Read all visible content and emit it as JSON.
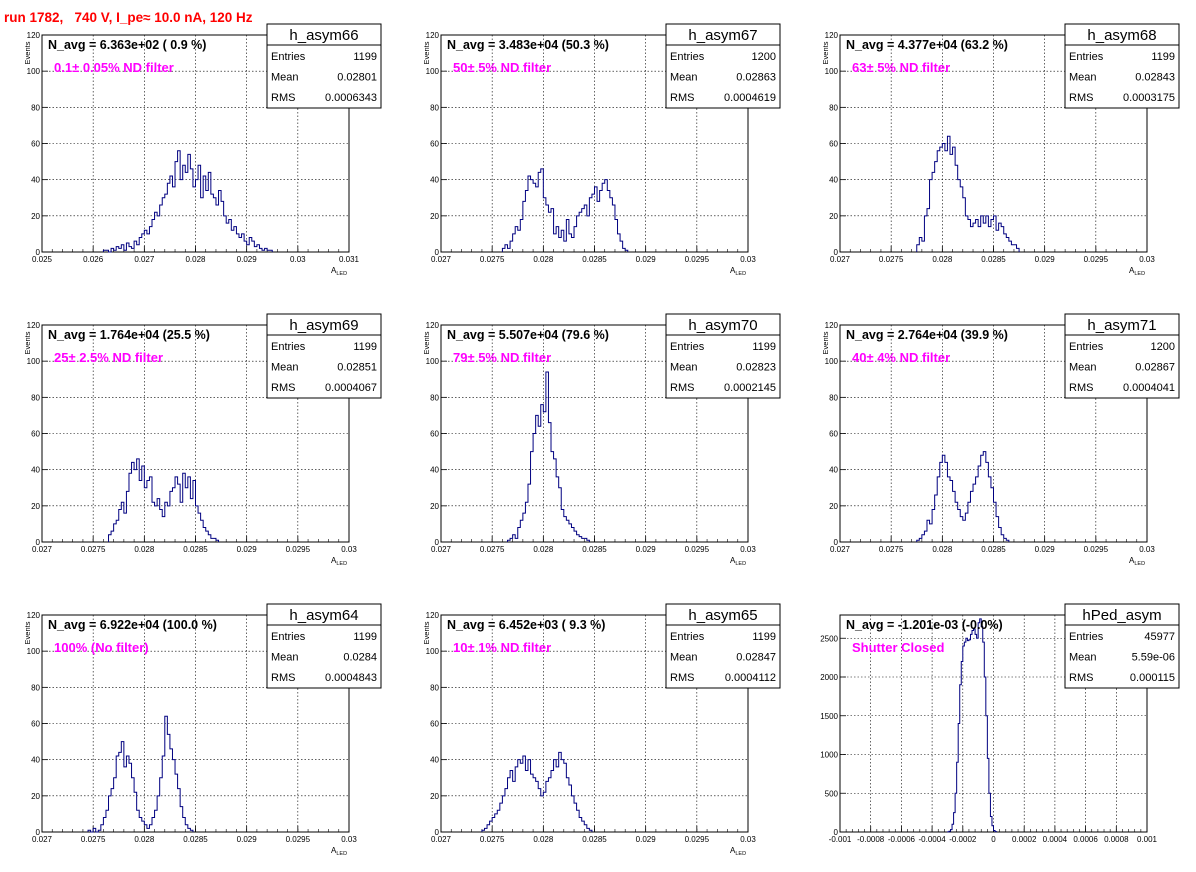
{
  "title": "run 1782,   740 V, I_pe≈ 10.0 nA, 120 Hz",
  "colors": {
    "title": "#ff0000",
    "label": "#ff00ff",
    "hist": "#000080",
    "grid": "#000000"
  },
  "stats_labels": {
    "entries": "Entries",
    "mean": "Mean",
    "rms": "RMS"
  },
  "chart_data": [
    {
      "type": "bar",
      "histogram": true,
      "name": "h_asym66",
      "navg": "N_avg = 6.363e+02 ( 0.9 %)",
      "label": "0.1± 0.05% ND filter",
      "entries": "1199",
      "mean": "0.02801",
      "rms": "0.0006343",
      "xlabel": "A",
      "xlabel_sub": "LED",
      "ylabel": "Events",
      "xlim": [
        0.025,
        0.031
      ],
      "ylim": [
        0,
        120
      ],
      "xticks": [
        "0.025",
        "0.026",
        "0.027",
        "0.028",
        "0.029",
        "0.03",
        "0.031"
      ],
      "yticks": [
        "0",
        "20",
        "40",
        "60",
        "80",
        "100",
        "120"
      ],
      "bin_lo": 0.0262,
      "bin_w": 5e-05,
      "counts": [
        1,
        1,
        0,
        2,
        1,
        3,
        2,
        4,
        1,
        5,
        3,
        2,
        6,
        4,
        8,
        10,
        12,
        10,
        14,
        18,
        22,
        20,
        26,
        30,
        32,
        38,
        42,
        36,
        50,
        56,
        40,
        48,
        44,
        54,
        46,
        36,
        40,
        48,
        30,
        42,
        34,
        44,
        32,
        30,
        26,
        34,
        28,
        20,
        16,
        18,
        12,
        14,
        10,
        8,
        10,
        6,
        4,
        8,
        6,
        3,
        4,
        2,
        1,
        2,
        1,
        1
      ]
    },
    {
      "type": "bar",
      "histogram": true,
      "name": "h_asym67",
      "navg": "N_avg = 3.483e+04 (50.3 %)",
      "label": "50± 5% ND filter",
      "entries": "1200",
      "mean": "0.02863",
      "rms": "0.0004619",
      "xlabel": "A",
      "xlabel_sub": "LED",
      "ylabel": "Events",
      "xlim": [
        0.027,
        0.03
      ],
      "ylim": [
        0,
        120
      ],
      "xticks": [
        "0.027",
        "0.0275",
        "0.028",
        "0.0285",
        "0.029",
        "0.0295",
        "0.03"
      ],
      "yticks": [
        "0",
        "20",
        "40",
        "60",
        "80",
        "100",
        "120"
      ],
      "bin_lo": 0.0276,
      "bin_w": 2.5e-05,
      "counts": [
        2,
        4,
        2,
        6,
        10,
        14,
        12,
        18,
        28,
        34,
        42,
        40,
        38,
        36,
        44,
        46,
        30,
        26,
        22,
        24,
        10,
        14,
        8,
        12,
        6,
        18,
        10,
        8,
        14,
        20,
        22,
        24,
        26,
        20,
        30,
        32,
        36,
        28,
        34,
        38,
        40,
        34,
        30,
        26,
        18,
        10,
        6,
        2,
        1
      ]
    },
    {
      "type": "bar",
      "histogram": true,
      "name": "h_asym68",
      "navg": "N_avg = 4.377e+04 (63.2 %)",
      "label": "63± 5% ND filter",
      "entries": "1199",
      "mean": "0.02843",
      "rms": "0.0003175",
      "xlabel": "A",
      "xlabel_sub": "LED",
      "ylabel": "Events",
      "xlim": [
        0.027,
        0.03
      ],
      "ylim": [
        0,
        120
      ],
      "xticks": [
        "0.027",
        "0.0275",
        "0.028",
        "0.0285",
        "0.029",
        "0.0295",
        "0.03"
      ],
      "yticks": [
        "0",
        "20",
        "40",
        "60",
        "80",
        "100",
        "120"
      ],
      "bin_lo": 0.02775,
      "bin_w": 2.5e-05,
      "counts": [
        4,
        8,
        6,
        20,
        24,
        40,
        44,
        50,
        56,
        58,
        60,
        56,
        64,
        54,
        58,
        48,
        40,
        36,
        30,
        20,
        18,
        14,
        16,
        18,
        14,
        20,
        16,
        20,
        14,
        18,
        20,
        12,
        16,
        14,
        10,
        8,
        6,
        4,
        4,
        2
      ]
    },
    {
      "type": "bar",
      "histogram": true,
      "name": "h_asym69",
      "navg": "N_avg = 1.764e+04 (25.5 %)",
      "label": "25± 2.5% ND filter",
      "entries": "1199",
      "mean": "0.02851",
      "rms": "0.0004067",
      "xlabel": "A",
      "xlabel_sub": "LED",
      "ylabel": "Events",
      "xlim": [
        0.027,
        0.03
      ],
      "ylim": [
        0,
        120
      ],
      "xticks": [
        "0.027",
        "0.0275",
        "0.028",
        "0.0285",
        "0.029",
        "0.0295",
        "0.03"
      ],
      "yticks": [
        "0",
        "20",
        "40",
        "60",
        "80",
        "100",
        "120"
      ],
      "bin_lo": 0.02765,
      "bin_w": 2.5e-05,
      "counts": [
        4,
        6,
        10,
        12,
        18,
        22,
        16,
        28,
        38,
        44,
        40,
        46,
        34,
        42,
        30,
        34,
        36,
        22,
        20,
        24,
        18,
        14,
        22,
        20,
        28,
        30,
        36,
        32,
        22,
        38,
        30,
        36,
        24,
        34,
        20,
        16,
        12,
        8,
        6,
        4,
        2,
        2,
        1
      ]
    },
    {
      "type": "bar",
      "histogram": true,
      "name": "h_asym70",
      "navg": "N_avg = 5.507e+04 (79.6 %)",
      "label": "79± 5% ND filter",
      "entries": "1199",
      "mean": "0.02823",
      "rms": "0.0002145",
      "xlabel": "A",
      "xlabel_sub": "LED",
      "ylabel": "Events",
      "xlim": [
        0.027,
        0.03
      ],
      "ylim": [
        0,
        120
      ],
      "xticks": [
        "0.027",
        "0.0275",
        "0.028",
        "0.0285",
        "0.029",
        "0.0295",
        "0.03"
      ],
      "yticks": [
        "0",
        "20",
        "40",
        "60",
        "80",
        "100",
        "120"
      ],
      "bin_lo": 0.02765,
      "bin_w": 2.5e-05,
      "counts": [
        1,
        2,
        4,
        2,
        8,
        12,
        16,
        22,
        32,
        50,
        60,
        70,
        64,
        76,
        72,
        94,
        66,
        50,
        46,
        36,
        30,
        18,
        14,
        12,
        10,
        8,
        6,
        4,
        3,
        2,
        2,
        1
      ]
    },
    {
      "type": "bar",
      "histogram": true,
      "name": "h_asym71",
      "navg": "N_avg = 2.764e+04 (39.9 %)",
      "label": "40± 4% ND filter",
      "entries": "1200",
      "mean": "0.02867",
      "rms": "0.0004041",
      "xlabel": "A",
      "xlabel_sub": "LED",
      "ylabel": "Events",
      "xlim": [
        0.027,
        0.03
      ],
      "ylim": [
        0,
        120
      ],
      "xticks": [
        "0.027",
        "0.0275",
        "0.028",
        "0.0285",
        "0.029",
        "0.0295",
        "0.03"
      ],
      "yticks": [
        "0",
        "20",
        "40",
        "60",
        "80",
        "100",
        "120"
      ],
      "bin_lo": 0.02775,
      "bin_w": 2.5e-05,
      "counts": [
        1,
        2,
        4,
        6,
        12,
        10,
        18,
        26,
        36,
        44,
        48,
        44,
        36,
        34,
        28,
        22,
        18,
        14,
        12,
        16,
        22,
        28,
        32,
        36,
        42,
        48,
        50,
        44,
        36,
        30,
        22,
        14,
        8,
        4,
        2,
        1
      ]
    },
    {
      "type": "bar",
      "histogram": true,
      "name": "h_asym64",
      "navg": "N_avg = 6.922e+04 (100.0 %)",
      "label": "100% (No filter)",
      "entries": "1199",
      "mean": "0.0284",
      "rms": "0.0004843",
      "xlabel": "A",
      "xlabel_sub": "LED",
      "ylabel": "Events",
      "xlim": [
        0.027,
        0.03
      ],
      "ylim": [
        0,
        120
      ],
      "xticks": [
        "0.027",
        "0.0275",
        "0.028",
        "0.0285",
        "0.029",
        "0.0295",
        "0.03"
      ],
      "yticks": [
        "0",
        "20",
        "40",
        "60",
        "80",
        "100",
        "120"
      ],
      "bin_lo": 0.02745,
      "bin_w": 2.5e-05,
      "counts": [
        1,
        0,
        2,
        0,
        1,
        4,
        8,
        12,
        20,
        24,
        30,
        42,
        44,
        50,
        36,
        42,
        38,
        30,
        22,
        12,
        8,
        6,
        4,
        2,
        4,
        8,
        12,
        20,
        30,
        42,
        64,
        54,
        46,
        40,
        32,
        24,
        14,
        8,
        4,
        2,
        1
      ]
    },
    {
      "type": "bar",
      "histogram": true,
      "name": "h_asym65",
      "navg": "N_avg = 6.452e+03 ( 9.3 %)",
      "label": "10± 1% ND filter",
      "entries": "1199",
      "mean": "0.02847",
      "rms": "0.0004112",
      "xlabel": "A",
      "xlabel_sub": "LED",
      "ylabel": "Events",
      "xlim": [
        0.027,
        0.03
      ],
      "ylim": [
        0,
        120
      ],
      "xticks": [
        "0.027",
        "0.0275",
        "0.028",
        "0.0285",
        "0.029",
        "0.0295",
        "0.03"
      ],
      "yticks": [
        "0",
        "20",
        "40",
        "60",
        "80",
        "100",
        "120"
      ],
      "bin_lo": 0.0274,
      "bin_w": 2.5e-05,
      "counts": [
        1,
        2,
        4,
        6,
        8,
        10,
        12,
        16,
        20,
        24,
        30,
        34,
        28,
        36,
        40,
        38,
        42,
        34,
        40,
        32,
        30,
        28,
        24,
        20,
        22,
        28,
        30,
        34,
        40,
        36,
        44,
        40,
        38,
        30,
        26,
        20,
        16,
        12,
        8,
        6,
        4,
        2,
        1
      ]
    },
    {
      "type": "bar",
      "histogram": true,
      "name": "hPed_asym",
      "navg": "N_avg = -1.201e-03 (-0.0%)",
      "label": "Shutter Closed",
      "entries": "45977",
      "mean": "5.59e-06",
      "rms": "0.000115",
      "xlabel": "",
      "xlabel_sub": "",
      "ylabel": "",
      "xlim": [
        -0.001,
        0.001
      ],
      "ylim": [
        0,
        2800
      ],
      "xticks": [
        "-0.001",
        "-0.0008",
        "-0.0006",
        "-0.0004",
        "-0.0002",
        "0",
        "0.0002",
        "0.0004",
        "0.0006",
        "0.0008",
        "0.001"
      ],
      "yticks": [
        "0",
        "500",
        "1000",
        "1500",
        "2000",
        "2500"
      ],
      "bin_lo": -0.0003,
      "bin_w": 1e-05,
      "counts": [
        2,
        10,
        30,
        100,
        250,
        500,
        900,
        1400,
        1900,
        2200,
        2400,
        2450,
        2500,
        2470,
        2480,
        2550,
        2600,
        2620,
        2550,
        2500,
        2700,
        2750,
        2650,
        2450,
        2000,
        1500,
        950,
        500,
        200,
        80,
        20,
        5
      ]
    }
  ]
}
